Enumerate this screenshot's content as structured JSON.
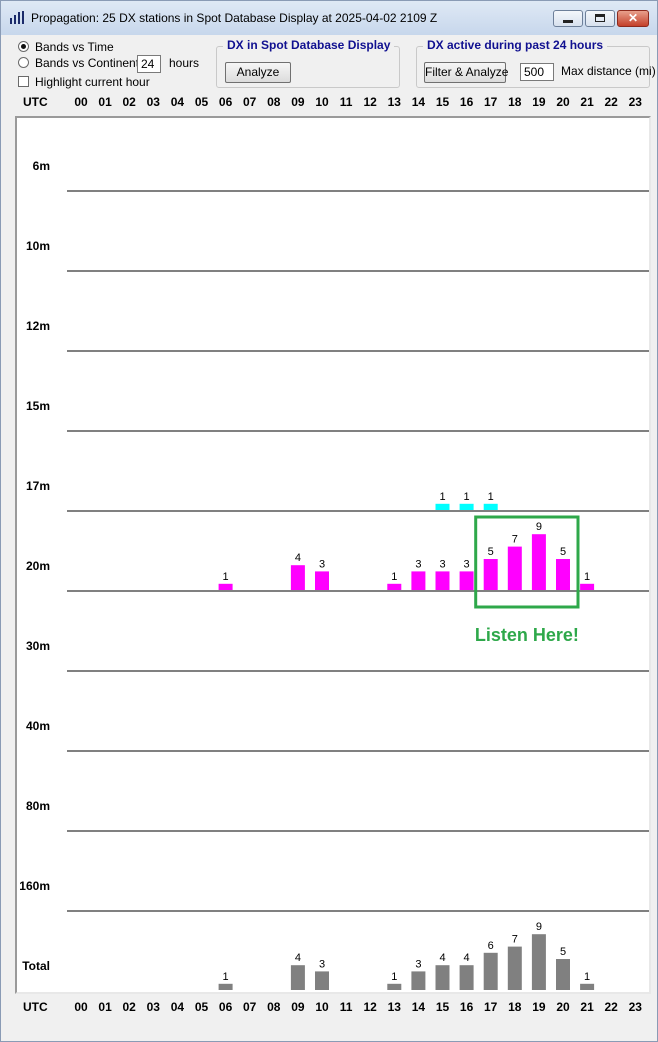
{
  "window": {
    "title": "Propagation: 25 DX stations in Spot Database Display at 2025-04-02 2109 Z",
    "close_glyph": "✕"
  },
  "options": {
    "bands_vs_time": "Bands vs Time",
    "bands_vs_continents": "Bands vs Continents",
    "hours_value": "24",
    "hours_label": "hours",
    "highlight_label": "Highlight current hour",
    "bands_vs_time_selected": true,
    "highlight_checked": false
  },
  "spot_group": {
    "title": "DX in Spot Database Display",
    "analyze_label": "Analyze"
  },
  "active_group": {
    "title": "DX active during past 24 hours",
    "filter_label": "Filter & Analyze",
    "distance_value": "500",
    "distance_label": "Max distance (mi)"
  },
  "axis": {
    "utc_label": "UTC",
    "hours": [
      "00",
      "01",
      "02",
      "03",
      "04",
      "05",
      "06",
      "07",
      "08",
      "09",
      "10",
      "11",
      "12",
      "13",
      "14",
      "15",
      "16",
      "17",
      "18",
      "19",
      "20",
      "21",
      "22",
      "23"
    ]
  },
  "colors": {
    "band_17m": "#00ffff",
    "band_20m": "#ff00ff",
    "total": "#808080",
    "highlight_box": "#2ea84a"
  },
  "annotation": {
    "text": "Listen Here!",
    "from_hour": 17,
    "to_hour": 20
  },
  "chart_data": {
    "type": "bar",
    "title": "",
    "x": [
      "00",
      "01",
      "02",
      "03",
      "04",
      "05",
      "06",
      "07",
      "08",
      "09",
      "10",
      "11",
      "12",
      "13",
      "14",
      "15",
      "16",
      "17",
      "18",
      "19",
      "20",
      "21",
      "22",
      "23"
    ],
    "rows": [
      "6m",
      "10m",
      "12m",
      "15m",
      "17m",
      "20m",
      "30m",
      "40m",
      "80m",
      "160m",
      "Total"
    ],
    "series": [
      {
        "name": "17m",
        "values": [
          0,
          0,
          0,
          0,
          0,
          0,
          0,
          0,
          0,
          0,
          0,
          0,
          0,
          0,
          0,
          1,
          1,
          1,
          0,
          0,
          0,
          0,
          0,
          0
        ]
      },
      {
        "name": "20m",
        "values": [
          0,
          0,
          0,
          0,
          0,
          0,
          1,
          0,
          0,
          4,
          3,
          0,
          0,
          1,
          3,
          3,
          3,
          5,
          7,
          9,
          5,
          1,
          0,
          0
        ]
      },
      {
        "name": "Total",
        "values": [
          0,
          0,
          0,
          0,
          0,
          0,
          1,
          0,
          0,
          4,
          3,
          0,
          0,
          1,
          3,
          4,
          4,
          6,
          7,
          9,
          5,
          1,
          0,
          0
        ]
      }
    ],
    "xlabel": "UTC",
    "ylabel": ""
  }
}
